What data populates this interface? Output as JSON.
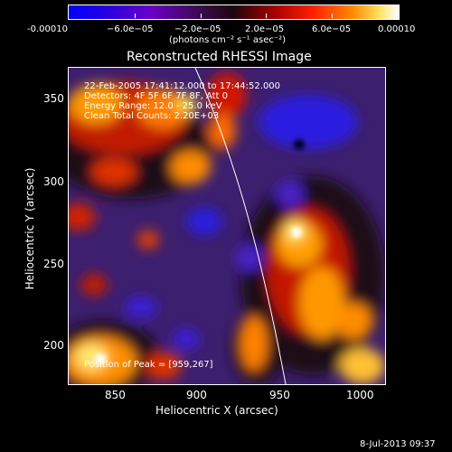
{
  "colorbar": {
    "tick_labels": [
      "-0.00010",
      "−6.0e−05",
      "−2.0e−05",
      "2.0e−05",
      "6.0e−05",
      "0.00010"
    ],
    "unit_label": "(photons cm⁻² s⁻¹ asec⁻²)"
  },
  "plot": {
    "title": "Reconstructed RHESSI Image",
    "xlabel": "Heliocentric X (arcsec)",
    "ylabel": "Heliocentric Y (arcsec)",
    "x_ticks": [
      "850",
      "900",
      "950",
      "1000"
    ],
    "y_ticks": [
      "350",
      "300",
      "250",
      "200"
    ]
  },
  "annotations": {
    "time_range": "22-Feb-2005 17:41:12.000 to 17:44:52.000",
    "detectors": "Detectors: 4F 5F 6F 7F 8F, Att 0",
    "energy": "Energy Range: 12.0 - 25.0 keV",
    "clean": "Clean    Total Counts: 2.20E+03",
    "peak": "Position of Peak = [959,267]"
  },
  "footer": {
    "date": "8-Jul-2013 09:37"
  },
  "colors": {
    "background": "#000000",
    "image_base": "#3c1f6e",
    "hot": "#ffd84a",
    "cold": "#1a22d8"
  }
}
